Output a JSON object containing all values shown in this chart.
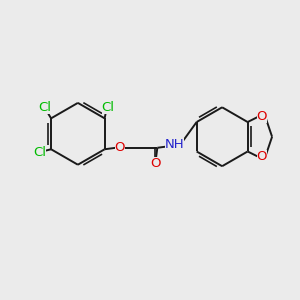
{
  "bg_color": "#ebebeb",
  "bond_color": "#1a1a1a",
  "cl_color": "#00bb00",
  "o_color": "#dd0000",
  "n_color": "#2222cc",
  "lw": 1.4,
  "lw_inner": 1.0,
  "fs": 9.5,
  "fig_bg": "#ebebeb",
  "xlim": [
    0,
    10
  ],
  "ylim": [
    0,
    10
  ]
}
